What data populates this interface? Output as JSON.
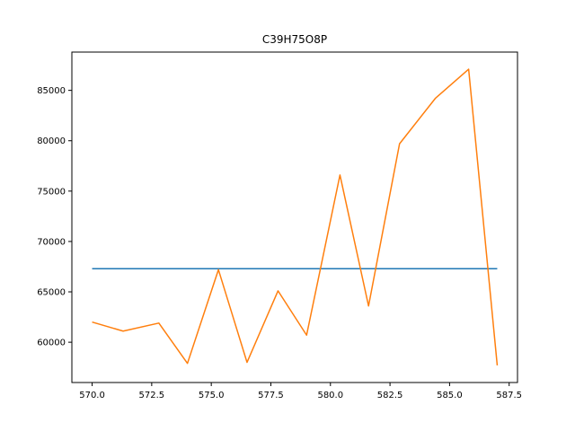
{
  "chart_data": {
    "type": "line",
    "title": "C39H75O8P",
    "xlabel": "",
    "ylabel": "",
    "xlim": [
      569.15,
      587.85
    ],
    "ylim": [
      56000,
      88800
    ],
    "grid": false,
    "x_ticks": [
      570.0,
      572.5,
      575.0,
      577.5,
      580.0,
      582.5,
      585.0,
      587.5
    ],
    "x_tick_labels": [
      "570.0",
      "572.5",
      "575.0",
      "577.5",
      "580.0",
      "582.5",
      "585.0",
      "587.5"
    ],
    "y_ticks": [
      60000,
      65000,
      70000,
      75000,
      80000,
      85000
    ],
    "y_tick_labels": [
      "60000",
      "65000",
      "70000",
      "75000",
      "80000",
      "85000"
    ],
    "series": [
      {
        "color": "#1f77b4",
        "x": [
          570.0,
          587.0
        ],
        "y": [
          67300,
          67300
        ]
      },
      {
        "color": "#ff7f0e",
        "x": [
          570.0,
          571.3,
          572.8,
          574.0,
          575.3,
          576.5,
          577.8,
          579.0,
          580.4,
          581.6,
          582.9,
          584.4,
          585.8,
          587.0
        ],
        "y": [
          62000,
          61100,
          61900,
          57900,
          67200,
          58000,
          65100,
          60700,
          76600,
          63600,
          79700,
          84200,
          87100,
          57700
        ]
      }
    ]
  }
}
